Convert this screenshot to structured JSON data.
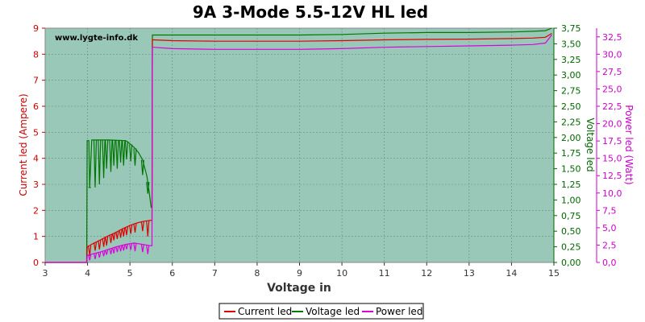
{
  "chart_data": {
    "type": "line",
    "title": "9A 3-Mode 5.5-12V HL led",
    "xlabel": "Voltage in",
    "xlim": [
      3,
      15
    ],
    "xticks": [
      "3",
      "4",
      "5",
      "6",
      "7",
      "8",
      "9",
      "10",
      "11",
      "12",
      "13",
      "14",
      "15"
    ],
    "grid": true,
    "legend_position": "bottom",
    "watermark": "www.lygte-info.dk",
    "axes": {
      "left": {
        "label": "Current led (Ampere)",
        "lim": [
          0,
          9
        ],
        "ticks": [
          "0",
          "1",
          "2",
          "3",
          "4",
          "5",
          "6",
          "7",
          "8",
          "9"
        ],
        "color": "#cc0000"
      },
      "right1": {
        "label": "Voltage led",
        "lim": [
          0,
          3.75
        ],
        "ticks": [
          "0,00",
          "0,25",
          "0,50",
          "0,75",
          "1,00",
          "1,25",
          "1,50",
          "1,75",
          "2,00",
          "2,25",
          "2,50",
          "2,75",
          "3,00",
          "3,25",
          "3,50",
          "3,75"
        ],
        "color": "#006600"
      },
      "right2": {
        "label": "Power led (Watt)",
        "lim": [
          0,
          33.75
        ],
        "ticks": [
          "0,0",
          "2,5",
          "5,0",
          "7,5",
          "10,0",
          "12,5",
          "15,0",
          "17,5",
          "20,0",
          "22,5",
          "25,0",
          "27,5",
          "30,0",
          "32,5"
        ],
        "color": "#cc00cc"
      }
    },
    "series": [
      {
        "name": "Current led",
        "axis": "left",
        "color": "#dd0000",
        "x": [
          3.0,
          3.98,
          3.99,
          4.05,
          4.1,
          4.2,
          4.3,
          4.4,
          4.5,
          4.6,
          4.7,
          4.8,
          4.9,
          5.0,
          5.1,
          5.2,
          5.3,
          5.4,
          5.5,
          5.52,
          5.53,
          5.55,
          6.0,
          7.0,
          8.0,
          9.0,
          10.0,
          11.0,
          12.0,
          13.0,
          14.0,
          14.5,
          14.8,
          14.95
        ],
        "y": [
          0.0,
          0.0,
          0.6,
          0.65,
          0.7,
          0.78,
          0.86,
          0.95,
          1.03,
          1.1,
          1.18,
          1.27,
          1.35,
          1.42,
          1.48,
          1.53,
          1.57,
          1.6,
          1.62,
          1.62,
          8.55,
          8.55,
          8.52,
          8.5,
          8.5,
          8.5,
          8.52,
          8.55,
          8.57,
          8.58,
          8.6,
          8.62,
          8.65,
          8.8
        ]
      },
      {
        "name": "Voltage led",
        "axis": "right1",
        "color": "#007700",
        "x": [
          3.0,
          3.98,
          3.99,
          4.03,
          4.05,
          4.1,
          4.5,
          4.9,
          5.0,
          5.1,
          5.2,
          5.3,
          5.4,
          5.45,
          5.5,
          5.52,
          5.53,
          5.55,
          6.0,
          7.0,
          8.0,
          9.0,
          10.0,
          11.0,
          12.0,
          13.0,
          14.0,
          14.5,
          14.8,
          14.95
        ],
        "y": [
          0.0,
          0.0,
          1.95,
          1.95,
          1.2,
          1.96,
          1.96,
          1.95,
          1.9,
          1.84,
          1.76,
          1.64,
          1.38,
          1.15,
          0.88,
          0.88,
          3.64,
          3.64,
          3.64,
          3.64,
          3.64,
          3.64,
          3.65,
          3.67,
          3.68,
          3.68,
          3.69,
          3.7,
          3.71,
          3.75
        ]
      },
      {
        "name": "Power led",
        "axis": "right2",
        "color": "#dd00dd",
        "x": [
          3.0,
          3.98,
          3.99,
          4.1,
          4.3,
          4.5,
          4.7,
          4.9,
          5.1,
          5.3,
          5.5,
          5.52,
          5.53,
          5.55,
          6.0,
          7.0,
          8.0,
          9.0,
          10.0,
          11.0,
          12.0,
          13.0,
          14.0,
          14.5,
          14.8,
          14.95
        ],
        "y": [
          0.0,
          0.0,
          1.0,
          1.2,
          1.5,
          1.9,
          2.3,
          2.6,
          2.8,
          2.6,
          2.4,
          2.4,
          31.0,
          31.0,
          30.8,
          30.7,
          30.7,
          30.7,
          30.8,
          31.0,
          31.1,
          31.2,
          31.3,
          31.4,
          31.6,
          32.8
        ]
      }
    ],
    "dips": {
      "x": [
        4.05,
        4.18,
        4.28,
        4.38,
        4.45,
        4.55,
        4.62,
        4.7,
        4.78,
        4.85,
        4.92,
        5.02,
        5.12,
        5.3,
        5.42
      ],
      "current": [
        0.25,
        0.45,
        0.5,
        0.6,
        0.65,
        0.75,
        0.85,
        0.9,
        0.95,
        1.0,
        1.05,
        1.1,
        1.15,
        1.2,
        1.0
      ],
      "voltage": [
        1.2,
        1.2,
        1.25,
        1.35,
        1.5,
        1.45,
        1.55,
        1.5,
        1.6,
        1.55,
        1.65,
        1.62,
        1.55,
        1.4,
        1.1
      ],
      "power": [
        0.3,
        0.5,
        0.7,
        0.9,
        1.1,
        1.2,
        1.3,
        1.5,
        1.6,
        1.7,
        1.9,
        1.8,
        1.6,
        1.5,
        1.2
      ]
    }
  }
}
